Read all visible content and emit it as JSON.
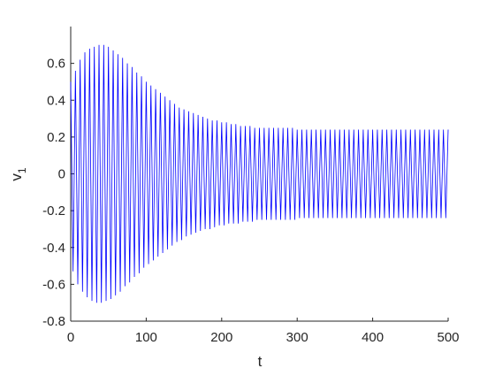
{
  "chart_data": {
    "type": "line",
    "xlabel": "t",
    "ylabel": "v",
    "ylabel_sub": "1",
    "xlim": [
      0,
      500
    ],
    "xticks": [
      0,
      100,
      200,
      300,
      400,
      500
    ],
    "ylim": [
      -0.8,
      0.8
    ],
    "yticks": [
      -0.8,
      -0.6,
      -0.4,
      -0.2,
      0,
      0.2,
      0.4,
      0.6
    ],
    "grid": false,
    "x": [
      0,
      3.125,
      6.25,
      9.375,
      12.5,
      15.625,
      18.75,
      21.875,
      25,
      28.125,
      31.25,
      34.375,
      37.5,
      40.625,
      43.75,
      46.875,
      50,
      53.125,
      56.25,
      59.375,
      62.5,
      65.625,
      68.75,
      71.875,
      75,
      78.125,
      81.25,
      84.375,
      87.5,
      90.625,
      93.75,
      96.875,
      100,
      103.125,
      106.25,
      109.375,
      112.5,
      115.625,
      118.75,
      121.875,
      125,
      128.125,
      131.25,
      134.375,
      137.5,
      140.625,
      143.75,
      146.875,
      150,
      153.125,
      156.25,
      159.375,
      162.5,
      165.625,
      168.75,
      171.875,
      175,
      178.125,
      181.25,
      184.375,
      187.5,
      190.625,
      193.75,
      196.875,
      200,
      203.125,
      206.25,
      209.375,
      212.5,
      215.625,
      218.75,
      221.875,
      225,
      228.125,
      231.25,
      234.375,
      237.5,
      240.625,
      243.75,
      246.875,
      250,
      253.125,
      256.25,
      259.375,
      262.5,
      265.625,
      268.75,
      271.875,
      275,
      278.125,
      281.25,
      284.375,
      287.5,
      290.625,
      293.75,
      296.875,
      300,
      303.125,
      306.25,
      309.375,
      312.5,
      315.625,
      318.75,
      321.875,
      325,
      328.125,
      331.25,
      334.375,
      337.5,
      340.625,
      343.75,
      346.875,
      350,
      353.125,
      356.25,
      359.375,
      362.5,
      365.625,
      368.75,
      371.875,
      375,
      378.125,
      381.25,
      384.375,
      387.5,
      390.625,
      393.75,
      396.875,
      400,
      403.125,
      406.25,
      409.375,
      412.5,
      415.625,
      418.75,
      421.875,
      425,
      428.125,
      431.25,
      434.375,
      437.5,
      440.625,
      443.75,
      446.875,
      450,
      453.125,
      456.25,
      459.375,
      462.5,
      465.625,
      468.75,
      471.875,
      475,
      478.125,
      481.25,
      484.375,
      487.5,
      490.625,
      493.75,
      496.875,
      500
    ],
    "series": [
      {
        "color": "#0000ff",
        "values": [
          0.5,
          -0.53,
          0.56,
          -0.6,
          0.62,
          -0.64,
          0.66,
          -0.67,
          0.68,
          -0.69,
          0.69,
          -0.7,
          0.7,
          -0.7,
          0.7,
          -0.69,
          0.69,
          -0.68,
          0.67,
          -0.66,
          0.65,
          -0.64,
          0.63,
          -0.61,
          0.6,
          -0.59,
          0.58,
          -0.56,
          0.55,
          -0.54,
          0.53,
          -0.51,
          0.5,
          -0.49,
          0.48,
          -0.47,
          0.46,
          -0.45,
          0.44,
          -0.43,
          0.42,
          -0.41,
          0.4,
          -0.39,
          0.38,
          -0.37,
          0.36,
          -0.36,
          0.35,
          -0.34,
          0.34,
          -0.33,
          0.33,
          -0.32,
          0.32,
          -0.31,
          0.31,
          -0.3,
          0.3,
          -0.3,
          0.29,
          -0.29,
          0.29,
          -0.28,
          0.28,
          -0.28,
          0.28,
          -0.27,
          0.27,
          -0.27,
          0.27,
          -0.27,
          0.26,
          -0.26,
          0.26,
          -0.26,
          0.26,
          -0.26,
          0.25,
          -0.25,
          0.25,
          -0.25,
          0.25,
          -0.25,
          0.25,
          -0.25,
          0.25,
          -0.25,
          0.25,
          -0.25,
          0.25,
          -0.25,
          0.25,
          -0.25,
          0.25,
          -0.25,
          0.24,
          -0.24,
          0.24,
          -0.24,
          0.24,
          -0.24,
          0.24,
          -0.24,
          0.24,
          -0.24,
          0.24,
          -0.24,
          0.24,
          -0.24,
          0.24,
          -0.24,
          0.24,
          -0.24,
          0.24,
          -0.24,
          0.24,
          -0.24,
          0.24,
          -0.24,
          0.24,
          -0.24,
          0.24,
          -0.24,
          0.24,
          -0.24,
          0.24,
          -0.24,
          0.24,
          -0.24,
          0.24,
          -0.24,
          0.24,
          -0.24,
          0.24,
          -0.24,
          0.24,
          -0.24,
          0.24,
          -0.24,
          0.24,
          -0.24,
          0.24,
          -0.24,
          0.24,
          -0.24,
          0.24,
          -0.24,
          0.24,
          -0.24,
          0.24,
          -0.24,
          0.24,
          -0.24,
          0.24,
          -0.24,
          0.24,
          -0.24,
          0.24,
          -0.24,
          0.24
        ]
      }
    ]
  }
}
